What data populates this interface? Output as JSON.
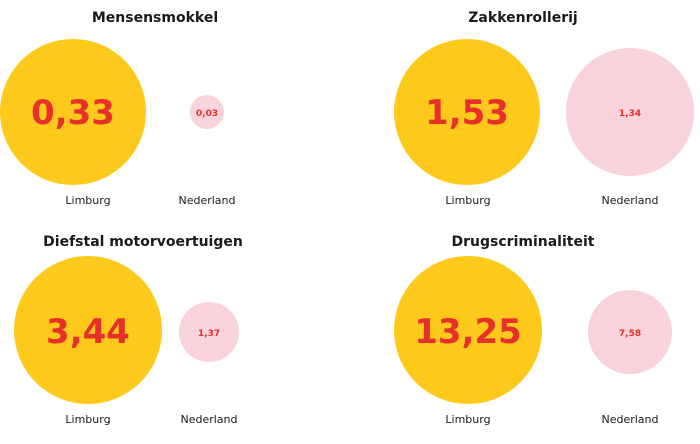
{
  "chart_data": [
    {
      "type": "bubble",
      "title": "Mensensmokkel",
      "categories": [
        "Limburg",
        "Nederland"
      ],
      "values": [
        "0,33",
        "0,03"
      ],
      "colors": [
        "#fdc91a",
        "#f8d3dc"
      ],
      "value_color": "#e8302a"
    },
    {
      "type": "bubble",
      "title": "Zakkenrollerij",
      "categories": [
        "Limburg",
        "Nederland"
      ],
      "values": [
        "1,53",
        "1,34"
      ],
      "colors": [
        "#fdc91a",
        "#f8d3dc"
      ],
      "value_color": "#e8302a"
    },
    {
      "type": "bubble",
      "title": "Diefstal motorvoertuigen",
      "categories": [
        "Limburg",
        "Nederland"
      ],
      "values": [
        "3,44",
        "1,37"
      ],
      "colors": [
        "#fdc91a",
        "#f8d3dc"
      ],
      "value_color": "#e8302a"
    },
    {
      "type": "bubble",
      "title": "Drugscriminaliteit",
      "categories": [
        "Limburg",
        "Nederland"
      ],
      "values": [
        "13,25",
        "7,58"
      ],
      "colors": [
        "#fdc91a",
        "#f8d3dc"
      ],
      "value_color": "#e8302a"
    }
  ]
}
